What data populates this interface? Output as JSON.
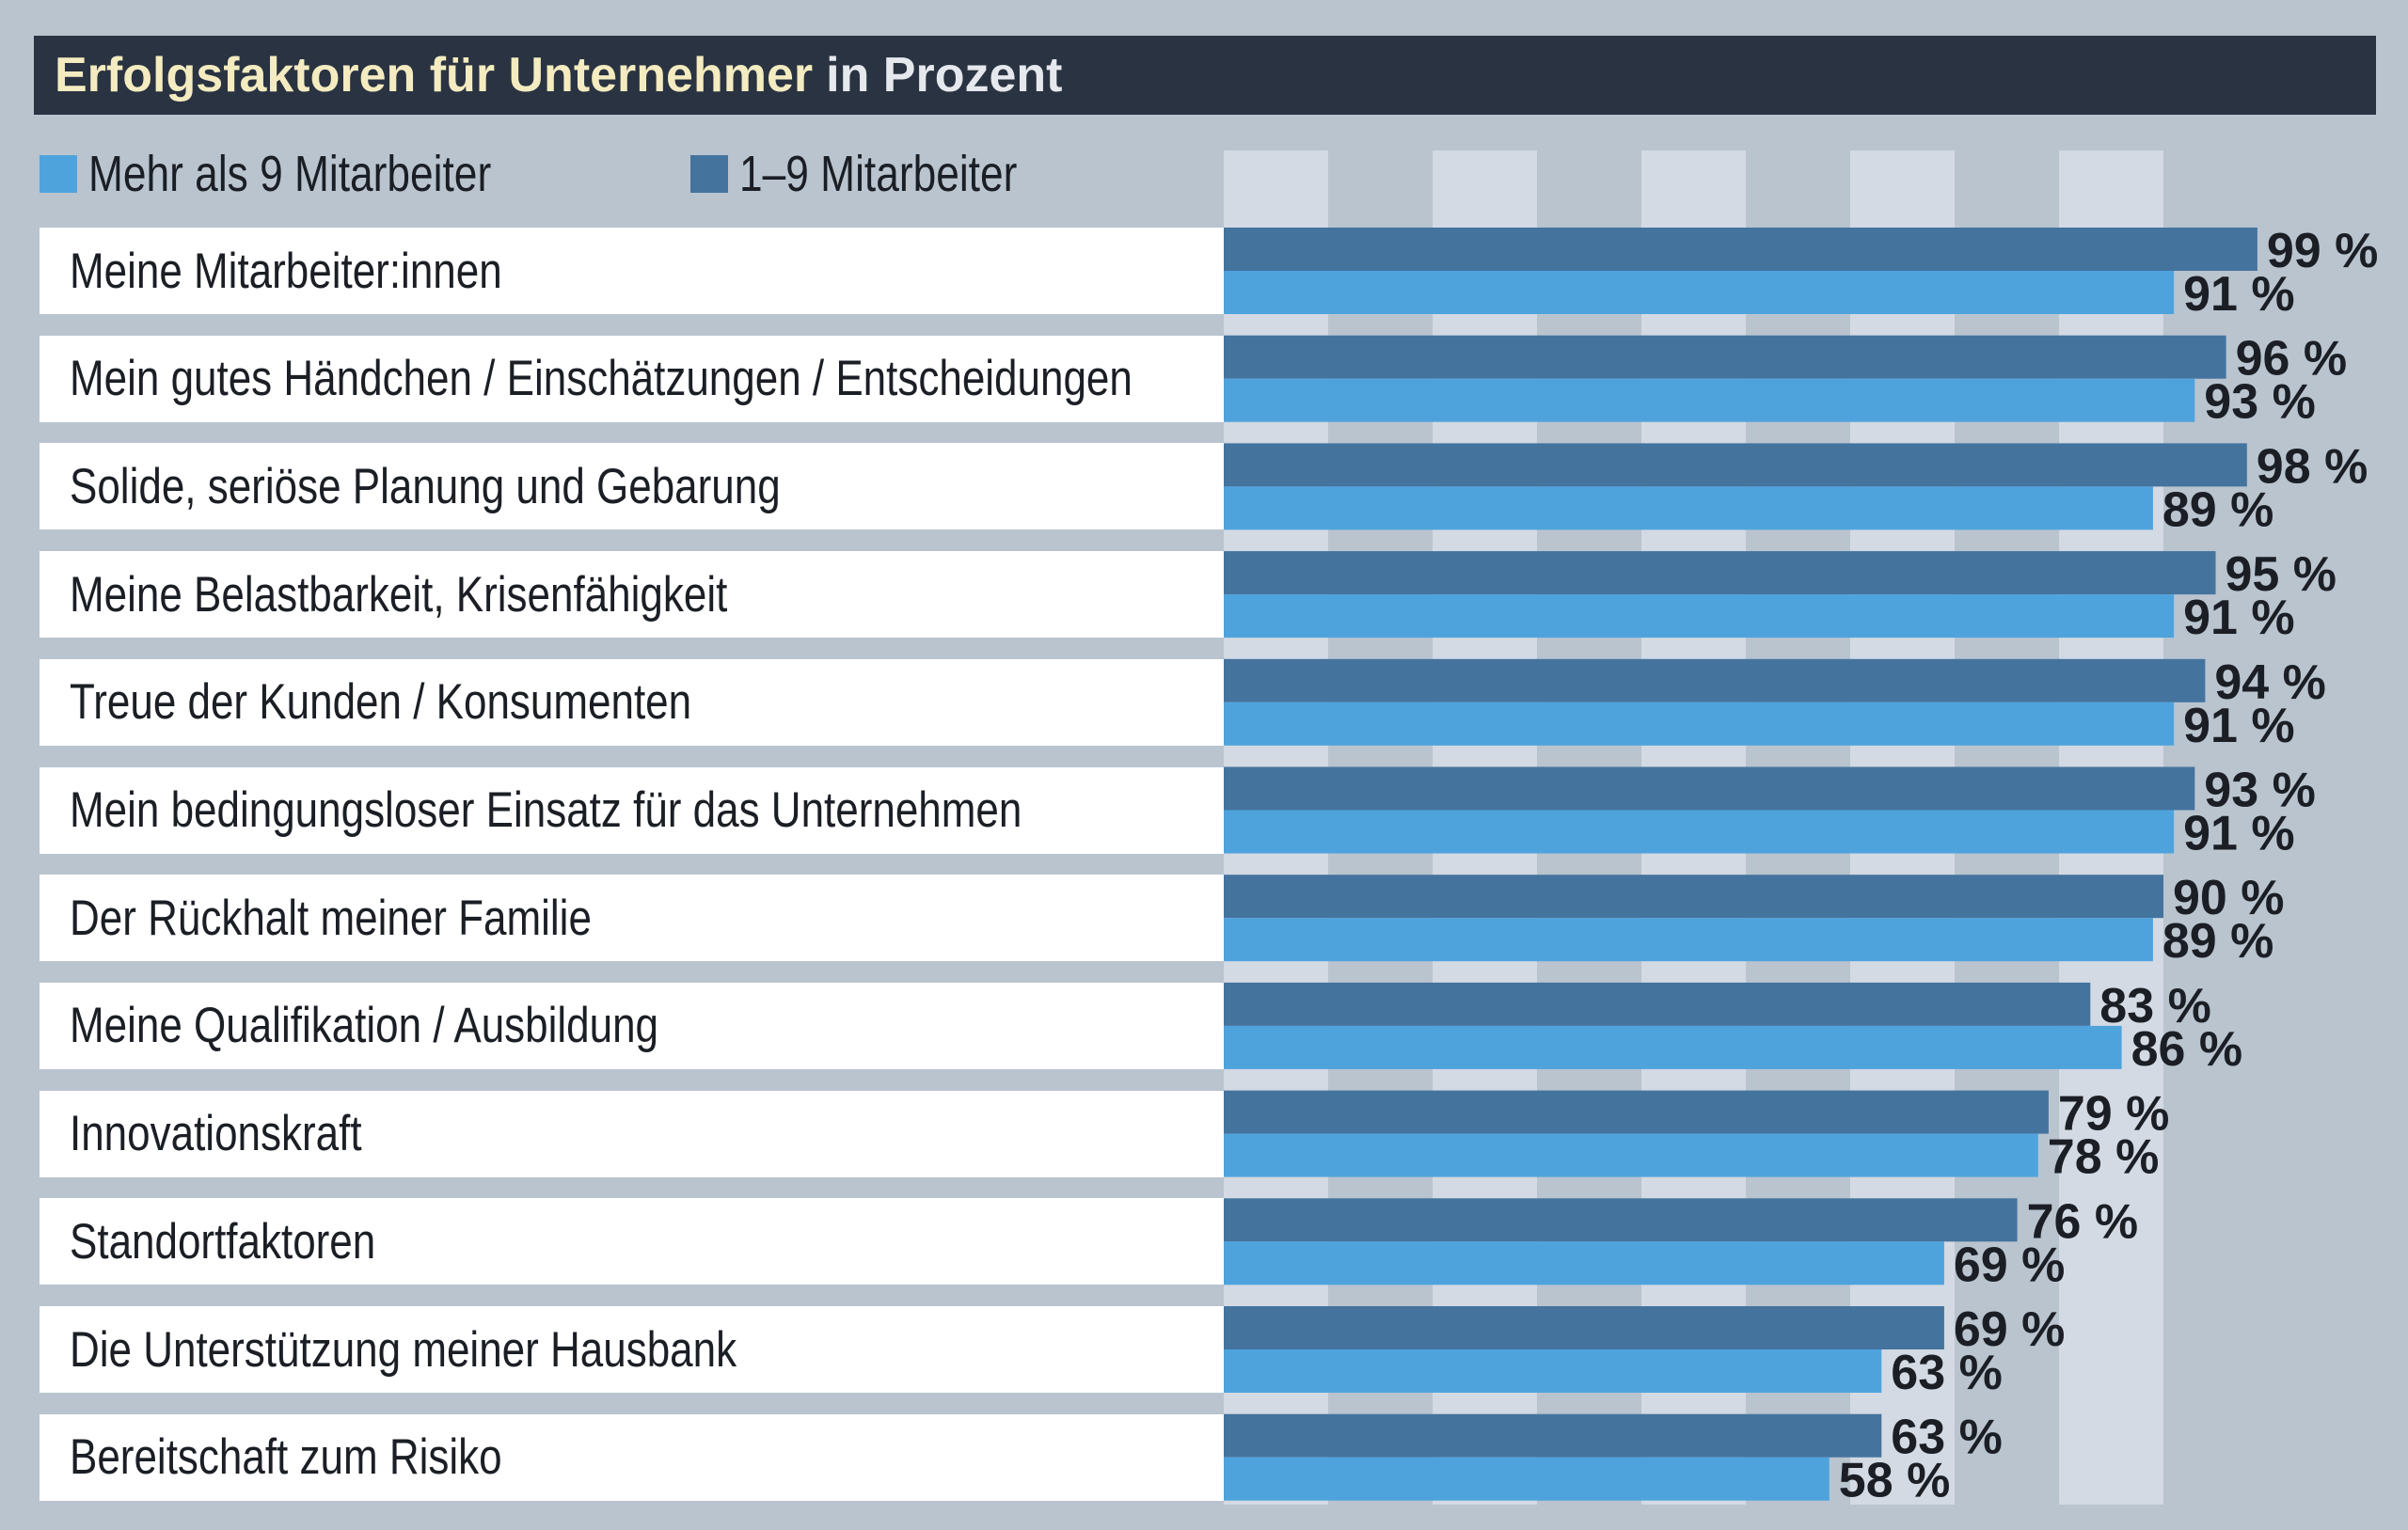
{
  "header": {
    "title": "Erfolgsfaktoren für Unternehmer",
    "subtitle": "in Prozent"
  },
  "legend": [
    {
      "label": "Mehr als 9 Mitarbeiter",
      "color": "#4fa3dd"
    },
    {
      "label": "1–9 Mitarbeiter",
      "color": "#44739e"
    }
  ],
  "chart_data": {
    "type": "bar",
    "orientation": "horizontal",
    "title": "Erfolgsfaktoren für Unternehmer in Prozent",
    "xlim": [
      0,
      100
    ],
    "unit": "%",
    "categories": [
      "Meine Mitarbeiter:innen",
      "Mein gutes Händchen / Einschätzungen / Entscheidungen",
      "Solide, seriöse Planung und Gebarung",
      "Meine Belastbarkeit, Krisenfähigkeit",
      "Treue der Kunden / Konsumenten",
      "Mein bedingungsloser Einsatz für das Unternehmen",
      "Der Rückhalt meiner Familie",
      "Meine Qualifikation / Ausbildung",
      "Innovationskraft",
      "Standortfaktoren",
      "Die Unterstützung meiner Hausbank",
      "Bereitschaft zum Risiko"
    ],
    "series": [
      {
        "name": "1–9 Mitarbeiter",
        "color": "#44739e",
        "values": [
          99,
          96,
          98,
          95,
          94,
          93,
          90,
          83,
          79,
          76,
          69,
          63
        ],
        "labels": [
          "99 %",
          "96 %",
          "98 %",
          "95 %",
          "94 %",
          "93 %",
          "90 %",
          "83 %",
          "79 %",
          "76 %",
          "69 %",
          "63 %"
        ]
      },
      {
        "name": "Mehr als 9 Mitarbeiter",
        "color": "#4fa3dd",
        "values": [
          91,
          93,
          89,
          91,
          91,
          91,
          89,
          86,
          78,
          69,
          63,
          58
        ],
        "labels": [
          "91 %",
          "93 %",
          "89 %",
          "91 %",
          "91 %",
          "91 %",
          "89 %",
          "86 %",
          "78 %",
          "69 %",
          "63 %",
          "58 %"
        ]
      }
    ]
  }
}
